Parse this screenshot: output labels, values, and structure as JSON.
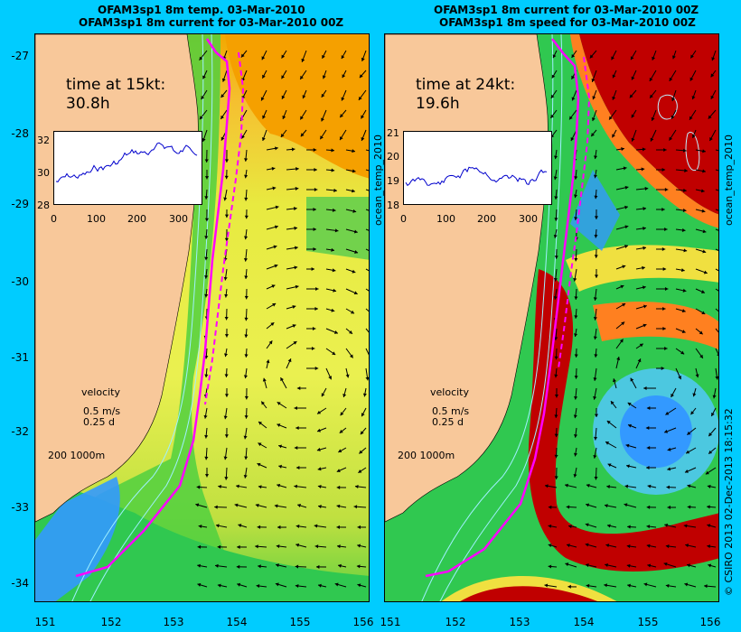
{
  "left_panel": {
    "title_line1": "OFAM3sp1 8m temp. 03-Mar-2010",
    "title_line2": "OFAM3sp1 8m current for 03-Mar-2010 00Z",
    "time_label": "time at 15kt:",
    "time_value": "30.8h",
    "inset_yticks": [
      "32",
      "30",
      "28"
    ],
    "inset_xticks": [
      "0",
      "100",
      "200",
      "300"
    ],
    "side_label": "ocean_temp_2010",
    "velocity_label": "velocity",
    "velocity_speed": "0.5 m/s",
    "velocity_time": "0.25 d",
    "contour_legend": "200  1000m"
  },
  "right_panel": {
    "title_line1": "OFAM3sp1 8m current for 03-Mar-2010 00Z",
    "title_line2": "OFAM3sp1 8m speed for 03-Mar-2010 00Z",
    "time_label": "time at 24kt:",
    "time_value": "19.6h",
    "inset_yticks": [
      "21",
      "20",
      "19",
      "18"
    ],
    "inset_xticks": [
      "0",
      "100",
      "200",
      "300"
    ],
    "side_label": "ocean_temp_2010",
    "velocity_label": "velocity",
    "velocity_speed": "0.5 m/s",
    "velocity_time": "0.25 d",
    "contour_legend": "200  1000m"
  },
  "axes": {
    "lat_ticks": [
      "-27",
      "-28",
      "-29",
      "-30",
      "-31",
      "-32",
      "-33",
      "-34"
    ],
    "lon_ticks_left": [
      "151",
      "152",
      "153",
      "154",
      "155",
      "156"
    ],
    "lon_ticks_right": [
      "151",
      "152",
      "153",
      "154",
      "155",
      "156"
    ]
  },
  "credit": "© CSIRO 2013   02-Dec-2013 18:15:32",
  "colors": {
    "background": "#00ccff",
    "land": "#f8c89a",
    "warm_orange": "#f5a000",
    "yellow": "#f0f050",
    "green": "#40d040",
    "deep_red": "#b00000",
    "cyan": "#40c0f0",
    "blue": "#3399ff",
    "route": "#ff00ff",
    "contour": "#a0f0ff"
  }
}
